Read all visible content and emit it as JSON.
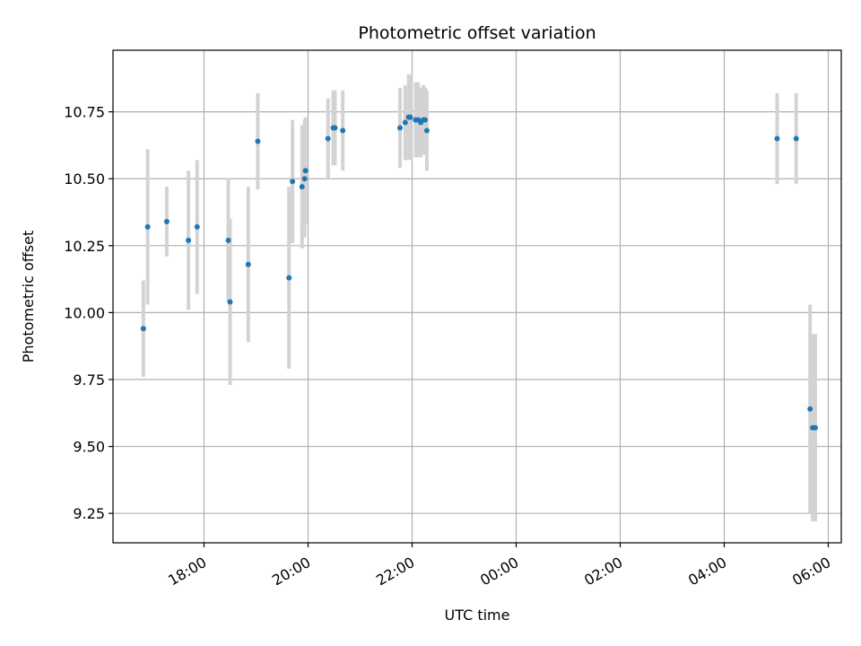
{
  "chart_data": {
    "type": "scatter",
    "title": "Photometric offset variation",
    "xlabel": "UTC time",
    "ylabel": "Photometric offset",
    "x_axis": {
      "kind": "time",
      "range": [
        "2000-01-01 16:15",
        "2000-01-02 06:15"
      ],
      "ticks": [
        {
          "value": "2000-01-01 18:00",
          "label": "18:00"
        },
        {
          "value": "2000-01-01 20:00",
          "label": "20:00"
        },
        {
          "value": "2000-01-01 22:00",
          "label": "22:00"
        },
        {
          "value": "2000-01-02 00:00",
          "label": "00:00"
        },
        {
          "value": "2000-01-02 02:00",
          "label": "02:00"
        },
        {
          "value": "2000-01-02 04:00",
          "label": "04:00"
        },
        {
          "value": "2000-01-02 06:00",
          "label": "06:00"
        }
      ]
    },
    "y_axis": {
      "range": [
        9.14,
        10.98
      ],
      "ticks": [
        {
          "value": 9.25,
          "label": "9.25"
        },
        {
          "value": 9.5,
          "label": "9.50"
        },
        {
          "value": 9.75,
          "label": "9.75"
        },
        {
          "value": 10.0,
          "label": "10.00"
        },
        {
          "value": 10.25,
          "label": "10.25"
        },
        {
          "value": 10.5,
          "label": "10.50"
        },
        {
          "value": 10.75,
          "label": "10.75"
        }
      ]
    },
    "grid": true,
    "legend": "none",
    "colors": {
      "point": "#1f77b4",
      "errorbar": "#d3d3d3",
      "grid": "#b0b0b0"
    },
    "points": [
      {
        "t": "2000-01-01 16:50",
        "y": 9.94,
        "err": 0.18
      },
      {
        "t": "2000-01-01 16:55",
        "y": 10.32,
        "err": 0.29
      },
      {
        "t": "2000-01-01 17:17",
        "y": 10.34,
        "err": 0.13
      },
      {
        "t": "2000-01-01 17:42",
        "y": 10.27,
        "err": 0.26
      },
      {
        "t": "2000-01-01 17:52",
        "y": 10.32,
        "err": 0.25
      },
      {
        "t": "2000-01-01 18:28",
        "y": 10.27,
        "err": 0.23
      },
      {
        "t": "2000-01-01 18:30",
        "y": 10.04,
        "err": 0.31
      },
      {
        "t": "2000-01-01 18:51",
        "y": 10.18,
        "err": 0.29
      },
      {
        "t": "2000-01-01 19:02",
        "y": 10.64,
        "err": 0.18
      },
      {
        "t": "2000-01-01 19:38",
        "y": 10.13,
        "err": 0.34
      },
      {
        "t": "2000-01-01 19:42",
        "y": 10.49,
        "err": 0.23
      },
      {
        "t": "2000-01-01 19:53",
        "y": 10.47,
        "err": 0.23
      },
      {
        "t": "2000-01-01 19:56",
        "y": 10.5,
        "err": 0.22
      },
      {
        "t": "2000-01-01 19:57",
        "y": 10.53,
        "err": 0.2
      },
      {
        "t": "2000-01-01 20:23",
        "y": 10.65,
        "err": 0.15
      },
      {
        "t": "2000-01-01 20:29",
        "y": 10.69,
        "err": 0.14
      },
      {
        "t": "2000-01-01 20:31",
        "y": 10.69,
        "err": 0.14
      },
      {
        "t": "2000-01-01 20:40",
        "y": 10.68,
        "err": 0.15
      },
      {
        "t": "2000-01-01 21:46",
        "y": 10.69,
        "err": 0.15
      },
      {
        "t": "2000-01-01 21:52",
        "y": 10.71,
        "err": 0.14
      },
      {
        "t": "2000-01-01 21:56",
        "y": 10.73,
        "err": 0.16
      },
      {
        "t": "2000-01-01 21:58",
        "y": 10.73,
        "err": 0.16
      },
      {
        "t": "2000-01-01 22:04",
        "y": 10.72,
        "err": 0.14
      },
      {
        "t": "2000-01-01 22:07",
        "y": 10.72,
        "err": 0.14
      },
      {
        "t": "2000-01-01 22:10",
        "y": 10.71,
        "err": 0.13
      },
      {
        "t": "2000-01-01 22:13",
        "y": 10.72,
        "err": 0.13
      },
      {
        "t": "2000-01-01 22:15",
        "y": 10.72,
        "err": 0.12
      },
      {
        "t": "2000-01-01 22:17",
        "y": 10.68,
        "err": 0.15
      },
      {
        "t": "2000-01-02 05:01",
        "y": 10.65,
        "err": 0.17
      },
      {
        "t": "2000-01-02 05:23",
        "y": 10.65,
        "err": 0.17
      },
      {
        "t": "2000-01-02 05:39",
        "y": 9.64,
        "err": 0.39
      },
      {
        "t": "2000-01-02 05:42",
        "y": 9.57,
        "err": 0.35
      },
      {
        "t": "2000-01-02 05:45",
        "y": 9.57,
        "err": 0.35
      }
    ]
  }
}
